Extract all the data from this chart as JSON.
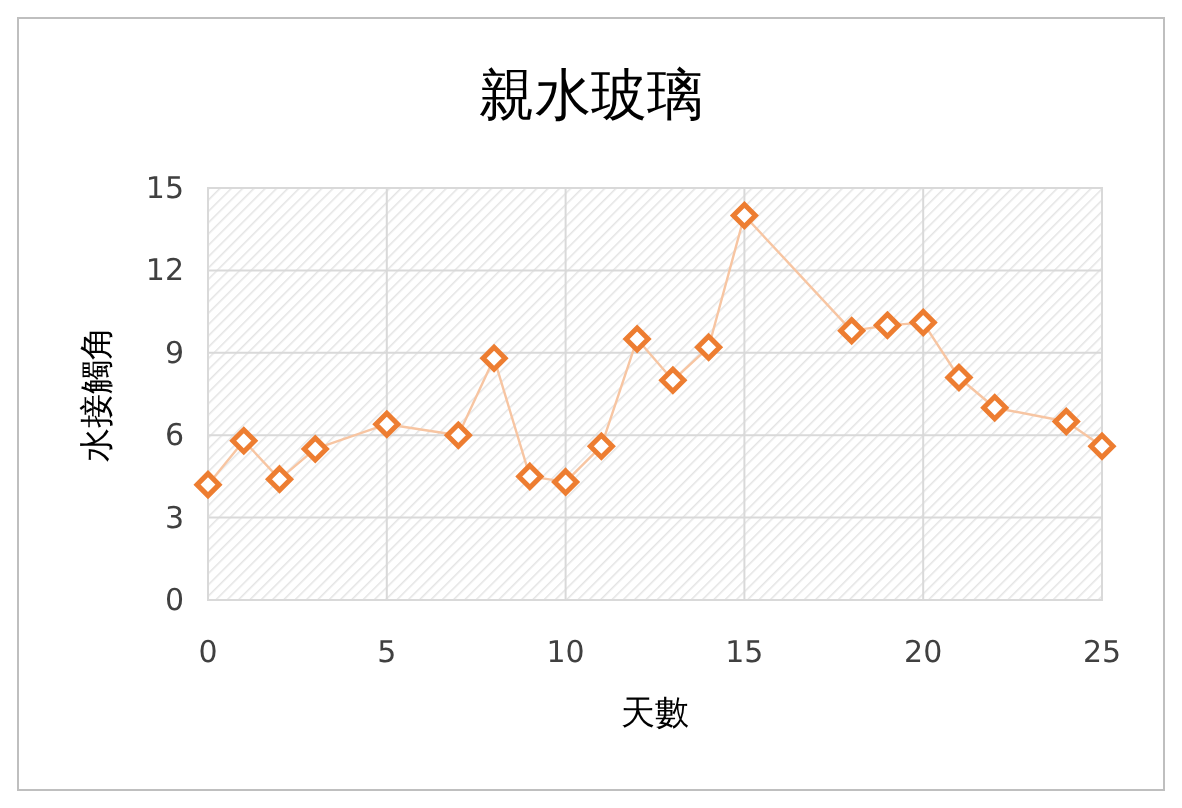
{
  "chart_data": {
    "type": "line",
    "title": "親水玻璃",
    "xlabel": "天數",
    "ylabel": "水接觸角",
    "x": [
      0,
      1,
      2,
      3,
      5,
      7,
      8,
      9,
      10,
      11,
      12,
      13,
      14,
      15,
      18,
      19,
      20,
      21,
      22,
      24,
      25
    ],
    "series": [
      {
        "color": "#ed7d31",
        "values": [
          4.2,
          5.8,
          4.4,
          5.5,
          6.4,
          6.0,
          8.8,
          4.5,
          4.3,
          5.6,
          9.5,
          8.0,
          9.2,
          14.0,
          9.8,
          10.0,
          10.1,
          8.1,
          7.0,
          6.5,
          5.6
        ]
      }
    ],
    "xlim": [
      0,
      25
    ],
    "xticks": [
      0,
      5,
      10,
      15,
      20,
      25
    ],
    "ylim": [
      0,
      15
    ],
    "yticks": [
      0,
      3,
      6,
      9,
      12,
      15
    ],
    "grid": true,
    "marker": "diamond",
    "line_style": "solid"
  }
}
